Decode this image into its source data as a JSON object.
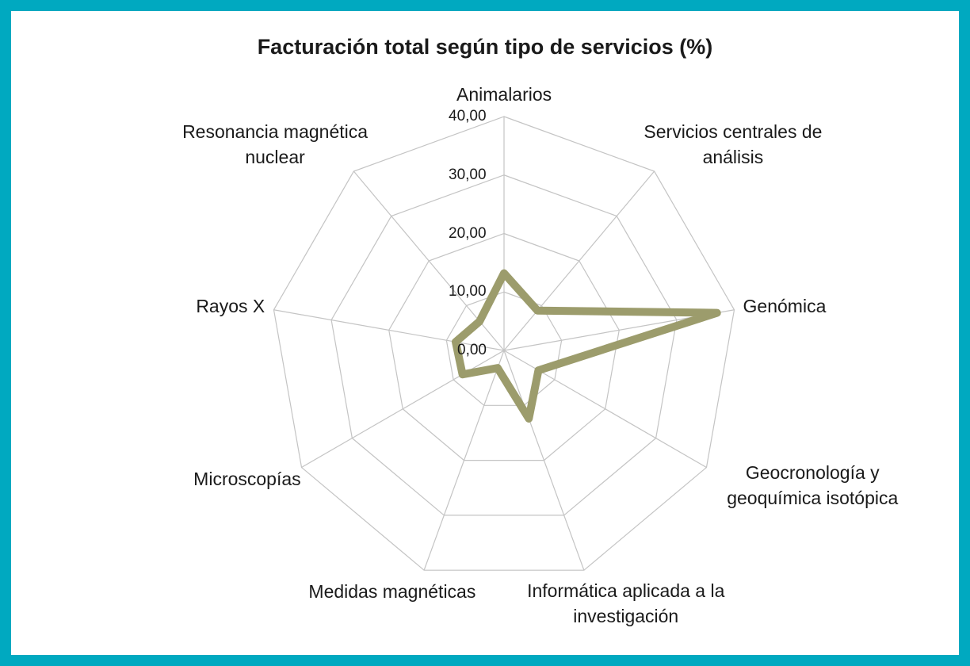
{
  "chart_data": {
    "type": "radar",
    "title": "Facturación total según tipo de servicios (%)",
    "categories": [
      "Animalarios",
      "Servicios centrales de análisis",
      "Genómica",
      "Geocronología y geoquímica isotópica",
      "Informática aplicada a la investigación",
      "Medidas magnéticas",
      "Microscopías",
      "Rayos X",
      "Resonancia magnética nuclear"
    ],
    "values": [
      13.2,
      8.9,
      37.0,
      6.8,
      12.4,
      3.2,
      8.2,
      8.4,
      6.5
    ],
    "color": "#9c9c6c",
    "rlim": [
      0,
      40
    ],
    "rticks": [
      {
        "value": 0,
        "label": "0,00"
      },
      {
        "value": 10,
        "label": "10,00"
      },
      {
        "value": 20,
        "label": "20,00"
      },
      {
        "value": 30,
        "label": "30,00"
      },
      {
        "value": 40,
        "label": "40,00"
      }
    ],
    "grid": true
  }
}
